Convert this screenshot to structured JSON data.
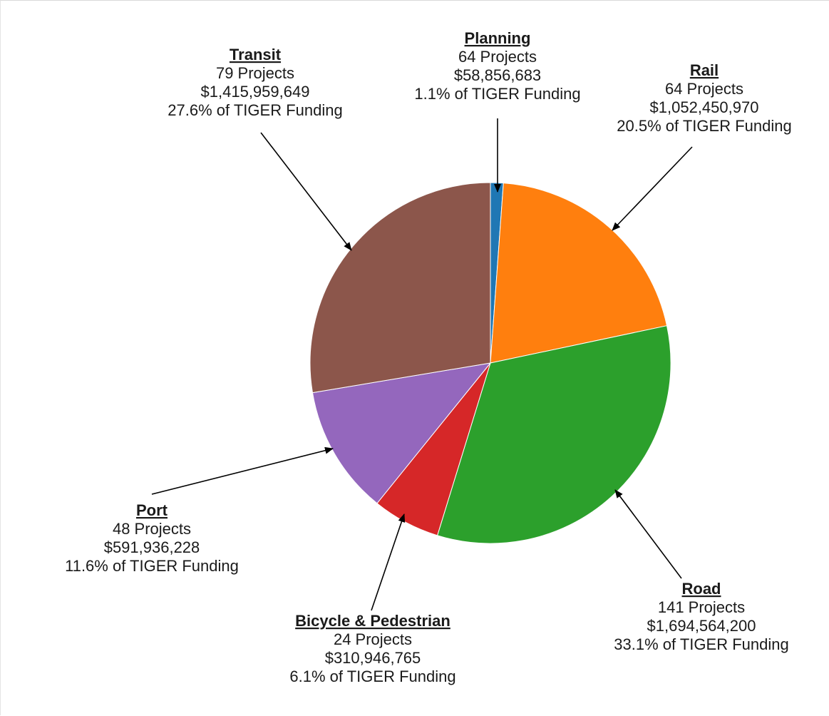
{
  "chart_data": {
    "type": "pie",
    "start_angle_deg": 0,
    "direction": "clockwise",
    "slices": [
      {
        "name": "Planning",
        "projects": "64 Projects",
        "amount": "$58,856,683",
        "share": "1.1% of TIGER Funding",
        "value": 58856683,
        "color": "#1f77b4"
      },
      {
        "name": "Rail",
        "projects": "64 Projects",
        "amount": "$1,052,450,970",
        "share": "20.5% of TIGER Funding",
        "value": 1052450970,
        "color": "#ff7f0e"
      },
      {
        "name": "Road",
        "projects": "141 Projects",
        "amount": "$1,694,564,200",
        "share": "33.1% of TIGER Funding",
        "value": 1694564200,
        "color": "#2ca02c"
      },
      {
        "name": "Bicycle & Pedestrian",
        "projects": "24 Projects",
        "amount": "$310,946,765",
        "share": "6.1% of TIGER Funding",
        "value": 310946765,
        "color": "#d62728"
      },
      {
        "name": "Port",
        "projects": "48 Projects",
        "amount": "$591,936,228",
        "share": "11.6% of TIGER Funding",
        "value": 591936228,
        "color": "#9467bd"
      },
      {
        "name": "Transit",
        "projects": "79 Projects",
        "amount": "$1,415,959,649",
        "share": "27.6% of TIGER Funding",
        "value": 1415959649,
        "color": "#8c564b"
      }
    ]
  }
}
